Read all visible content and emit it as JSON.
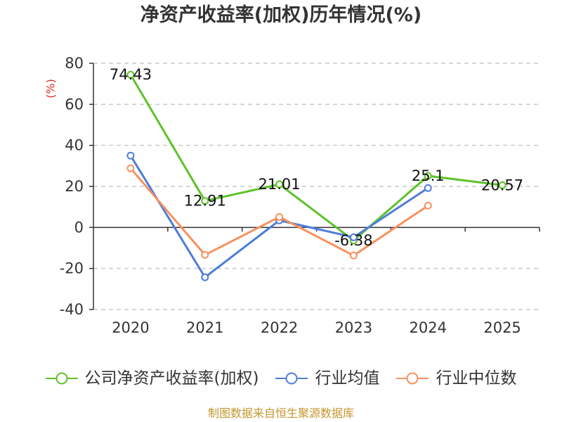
{
  "chart_data": {
    "type": "line",
    "title": "净资产收益率(加权)历年情况(%)",
    "ylabel": "(%)",
    "categories": [
      "2020",
      "2021",
      "2022",
      "2023",
      "2024",
      "2025"
    ],
    "ylim": [
      -40,
      80
    ],
    "yticks": [
      80,
      60,
      40,
      20,
      0,
      -20,
      -40
    ],
    "grid": true,
    "legend": "bottom",
    "series": [
      {
        "name": "公司净资产收益率(加权)",
        "color": "#5ec22a",
        "data_labels": true,
        "values": [
          74.43,
          12.91,
          21.01,
          -6.38,
          25.1,
          20.57
        ]
      },
      {
        "name": "行业均值",
        "color": "#4e7dd9",
        "data_labels": false,
        "values": [
          35.0,
          -24.3,
          3.4,
          -4.8,
          19.2,
          null
        ]
      },
      {
        "name": "行业中位数",
        "color": "#f8915e",
        "data_labels": false,
        "values": [
          28.8,
          -13.4,
          5.1,
          -13.7,
          10.6,
          null
        ]
      }
    ]
  },
  "colors": {
    "ylabel": "#e02b2b",
    "source_note": "#c4962f",
    "axis": "#333333"
  },
  "source_note": "制图数据来自恒生聚源数据库"
}
